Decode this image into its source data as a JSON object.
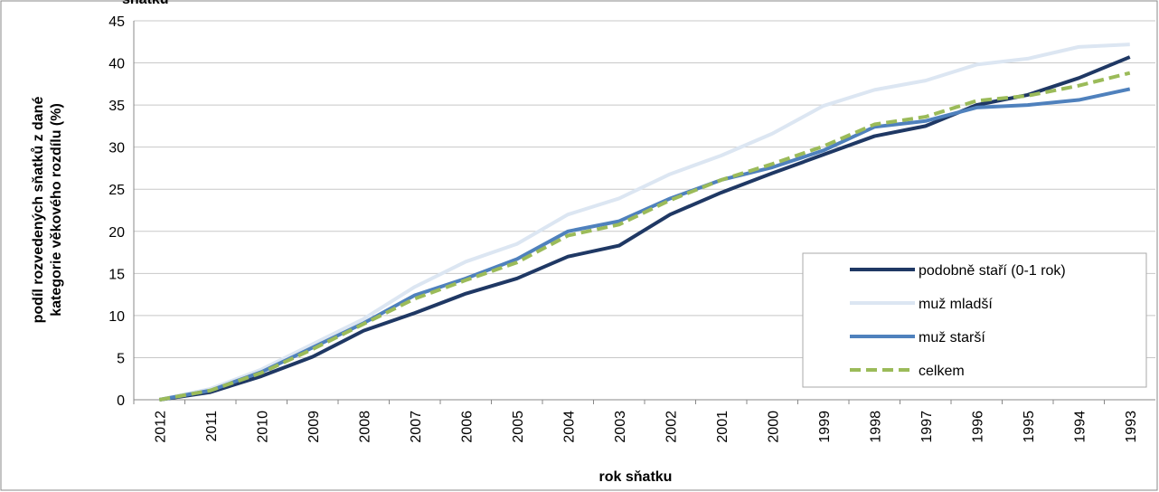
{
  "chart_data": {
    "type": "line",
    "title": "sňatku",
    "x_label": "rok sňatku",
    "y_label": [
      "podíl rozvedených sňatků z dané",
      "kategorie věkového rozdílu  (%)"
    ],
    "categories": [
      "2012",
      "2011",
      "2010",
      "2009",
      "2008",
      "2007",
      "2006",
      "2005",
      "2004",
      "2003",
      "2002",
      "2001",
      "2000",
      "1999",
      "1998",
      "1997",
      "1996",
      "1995",
      "1994",
      "1993"
    ],
    "ylim": [
      0,
      45
    ],
    "yticks": [
      0,
      5,
      10,
      15,
      20,
      25,
      30,
      35,
      40,
      45
    ],
    "grid": true,
    "legend": "right",
    "series": [
      {
        "name": "podobně staří (0-1 rok)",
        "color": "#1f3864",
        "dash": false,
        "values": [
          0,
          0.9,
          2.8,
          5.1,
          8.2,
          10.3,
          12.6,
          14.4,
          17.0,
          18.3,
          22.0,
          24.6,
          26.9,
          29.1,
          31.3,
          32.5,
          35.0,
          36.2,
          38.2,
          40.7
        ]
      },
      {
        "name": "muž mladší",
        "color": "#dce6f2",
        "dash": false,
        "values": [
          0,
          1.3,
          3.6,
          6.6,
          9.6,
          13.4,
          16.4,
          18.5,
          22.0,
          23.9,
          26.8,
          29.0,
          31.6,
          34.9,
          36.8,
          37.9,
          39.8,
          40.5,
          41.9,
          42.2
        ]
      },
      {
        "name": "muž starší",
        "color": "#4f81bd",
        "dash": false,
        "values": [
          0,
          1.1,
          3.3,
          6.2,
          9.1,
          12.4,
          14.4,
          16.7,
          20.0,
          21.2,
          23.9,
          26.1,
          27.6,
          29.6,
          32.4,
          33.1,
          34.7,
          35.0,
          35.6,
          36.9
        ]
      },
      {
        "name": "celkem",
        "color": "#9bbb59",
        "dash": true,
        "values": [
          0,
          1.1,
          3.2,
          6.0,
          9.0,
          12.0,
          14.2,
          16.3,
          19.5,
          20.8,
          23.7,
          26.1,
          28.0,
          30.1,
          32.7,
          33.6,
          35.5,
          36.1,
          37.3,
          38.8
        ]
      }
    ]
  }
}
